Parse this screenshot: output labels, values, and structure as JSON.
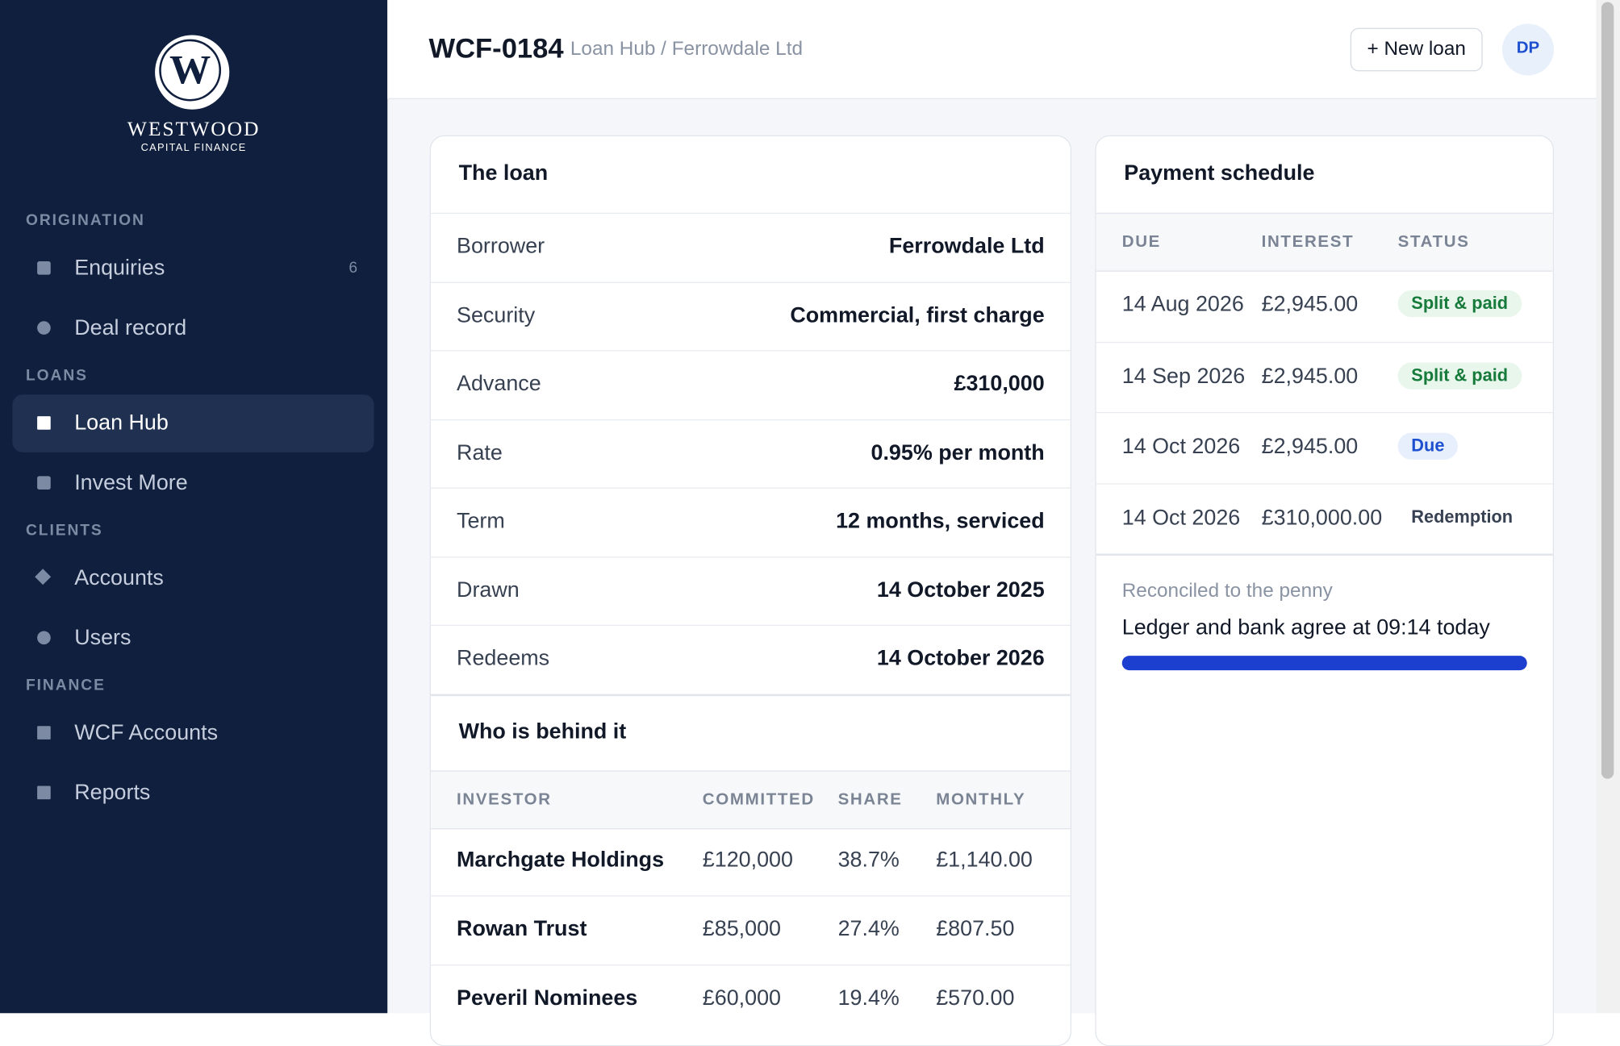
{
  "header": {
    "id": "WCF-0184",
    "breadcrumb": "Loan Hub / Ferrowdale Ltd",
    "button": "+ New loan",
    "avatar": "DP"
  },
  "sidebar": {
    "logo": "W",
    "brand": "WESTWOOD",
    "tagline": "CAPITAL FINANCE",
    "sections": [
      {
        "title": "ORIGINATION",
        "items": [
          {
            "label": "Enquiries",
            "badge": "6"
          },
          {
            "label": "Deal record"
          }
        ]
      },
      {
        "title": "LOANS",
        "items": [
          {
            "label": "Loan Hub"
          },
          {
            "label": "Invest More"
          }
        ]
      },
      {
        "title": "CLIENTS",
        "items": [
          {
            "label": "Accounts"
          },
          {
            "label": "Users"
          }
        ]
      },
      {
        "title": "FINANCE",
        "items": [
          {
            "label": "WCF Accounts"
          },
          {
            "label": "Reports"
          }
        ]
      }
    ]
  },
  "loan": {
    "title": "The loan",
    "rows": [
      [
        "Borrower",
        "Ferrowdale Ltd"
      ],
      [
        "Security",
        "Commercial, first charge"
      ],
      [
        "Advance",
        "£310,000"
      ],
      [
        "Rate",
        "0.95% per month"
      ],
      [
        "Term",
        "12 months, serviced"
      ],
      [
        "Drawn",
        "14 October 2025"
      ],
      [
        "Redeems",
        "14 October 2026"
      ]
    ]
  },
  "investors": {
    "title": "Who is behind it",
    "columns": [
      "INVESTOR",
      "COMMITTED",
      "SHARE",
      "MONTHLY"
    ],
    "rows": [
      [
        "Marchgate Holdings",
        "£120,000",
        "38.7%",
        "£1,140.00"
      ],
      [
        "Rowan Trust",
        "£85,000",
        "27.4%",
        "£807.50"
      ],
      [
        "Peveril Nominees",
        "£60,000",
        "19.4%",
        "£570.00"
      ]
    ]
  },
  "schedule": {
    "title": "Payment schedule",
    "columns": [
      "DUE",
      "INTEREST",
      "STATUS"
    ],
    "rows": [
      [
        "14 Aug 2026",
        "£2,945.00",
        "Split & paid"
      ],
      [
        "14 Sep 2026",
        "£2,945.00",
        "Split & paid"
      ],
      [
        "14 Oct 2026",
        "£2,945.00",
        "Due"
      ],
      [
        "14 Oct 2026",
        "£310,000.00",
        "Redemption"
      ]
    ],
    "note": "Reconciled to the penny",
    "detail": "Ledger and bank agree at 09:14 today"
  }
}
